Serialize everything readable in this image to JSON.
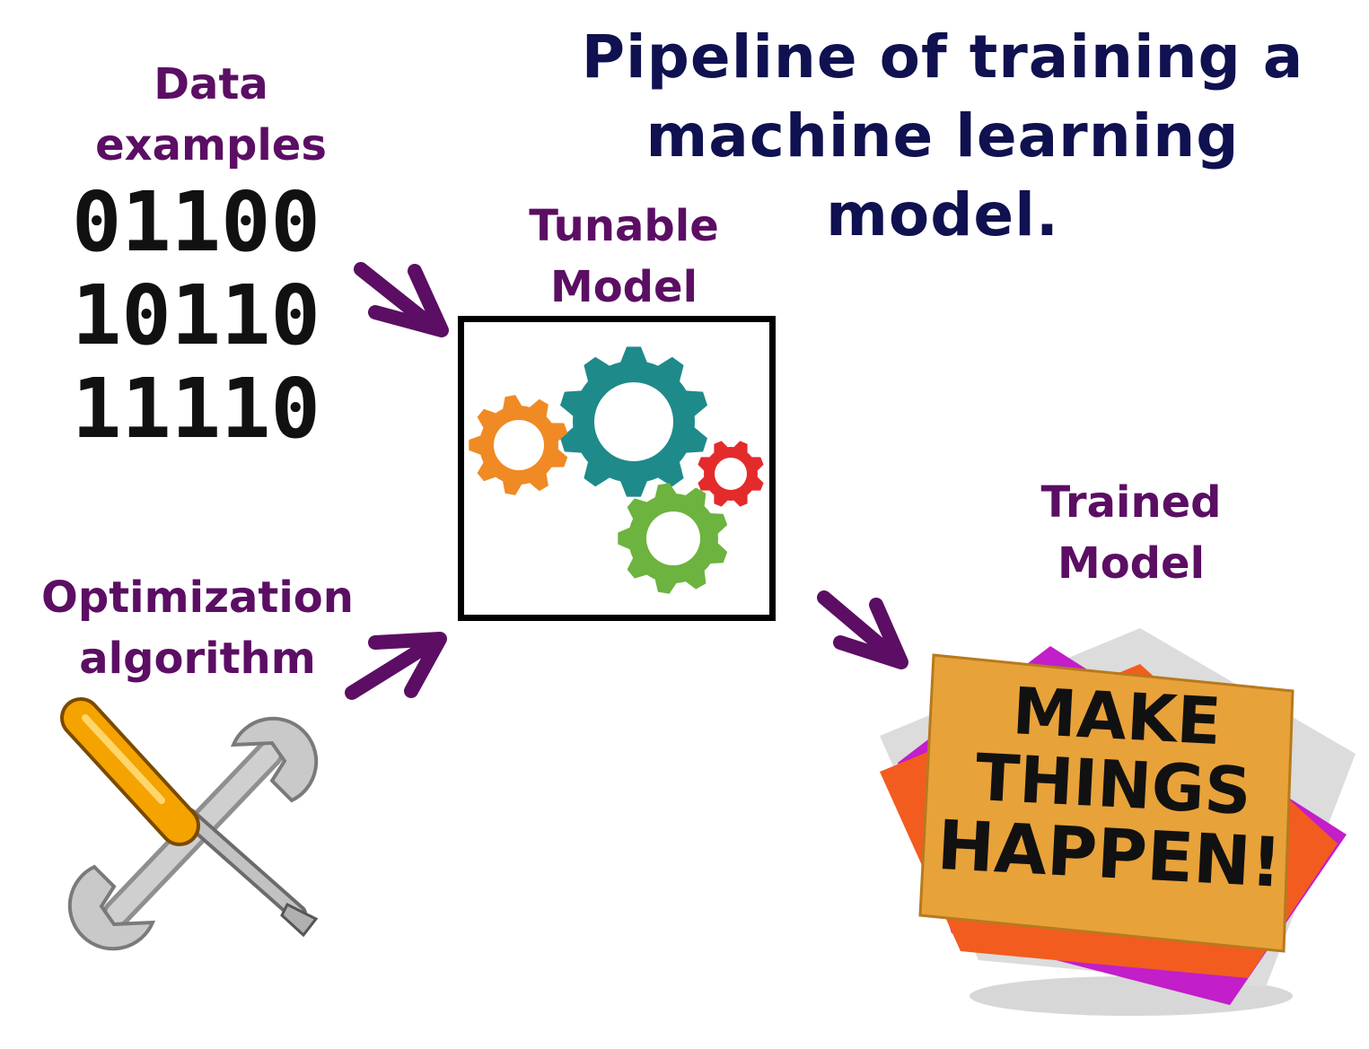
{
  "title": {
    "line1": "Pipeline of training a",
    "line2": "machine learning model."
  },
  "data_examples": {
    "label_line1": "Data",
    "label_line2": "examples",
    "rows": [
      "01100",
      "10110",
      "11110"
    ]
  },
  "tunable_model": {
    "label_line1": "Tunable",
    "label_line2": "Model",
    "icon": "gears-icon"
  },
  "optimization": {
    "label_line1": "Optimization",
    "label_line2": "algorithm",
    "icon": "wrench-screwdriver-icon"
  },
  "trained_model": {
    "label_line1": "Trained",
    "label_line2": "Model",
    "note_line1": "MAKE",
    "note_line2": "THINGS",
    "note_line3": "HAPPEN!"
  },
  "colors": {
    "title": "#0f1150",
    "label": "#5b0e63",
    "arrow": "#5b0e63",
    "gear_teal": "#1f8a8a",
    "gear_orange": "#f08a24",
    "gear_green": "#6db33f",
    "gear_red": "#e32b2b"
  }
}
